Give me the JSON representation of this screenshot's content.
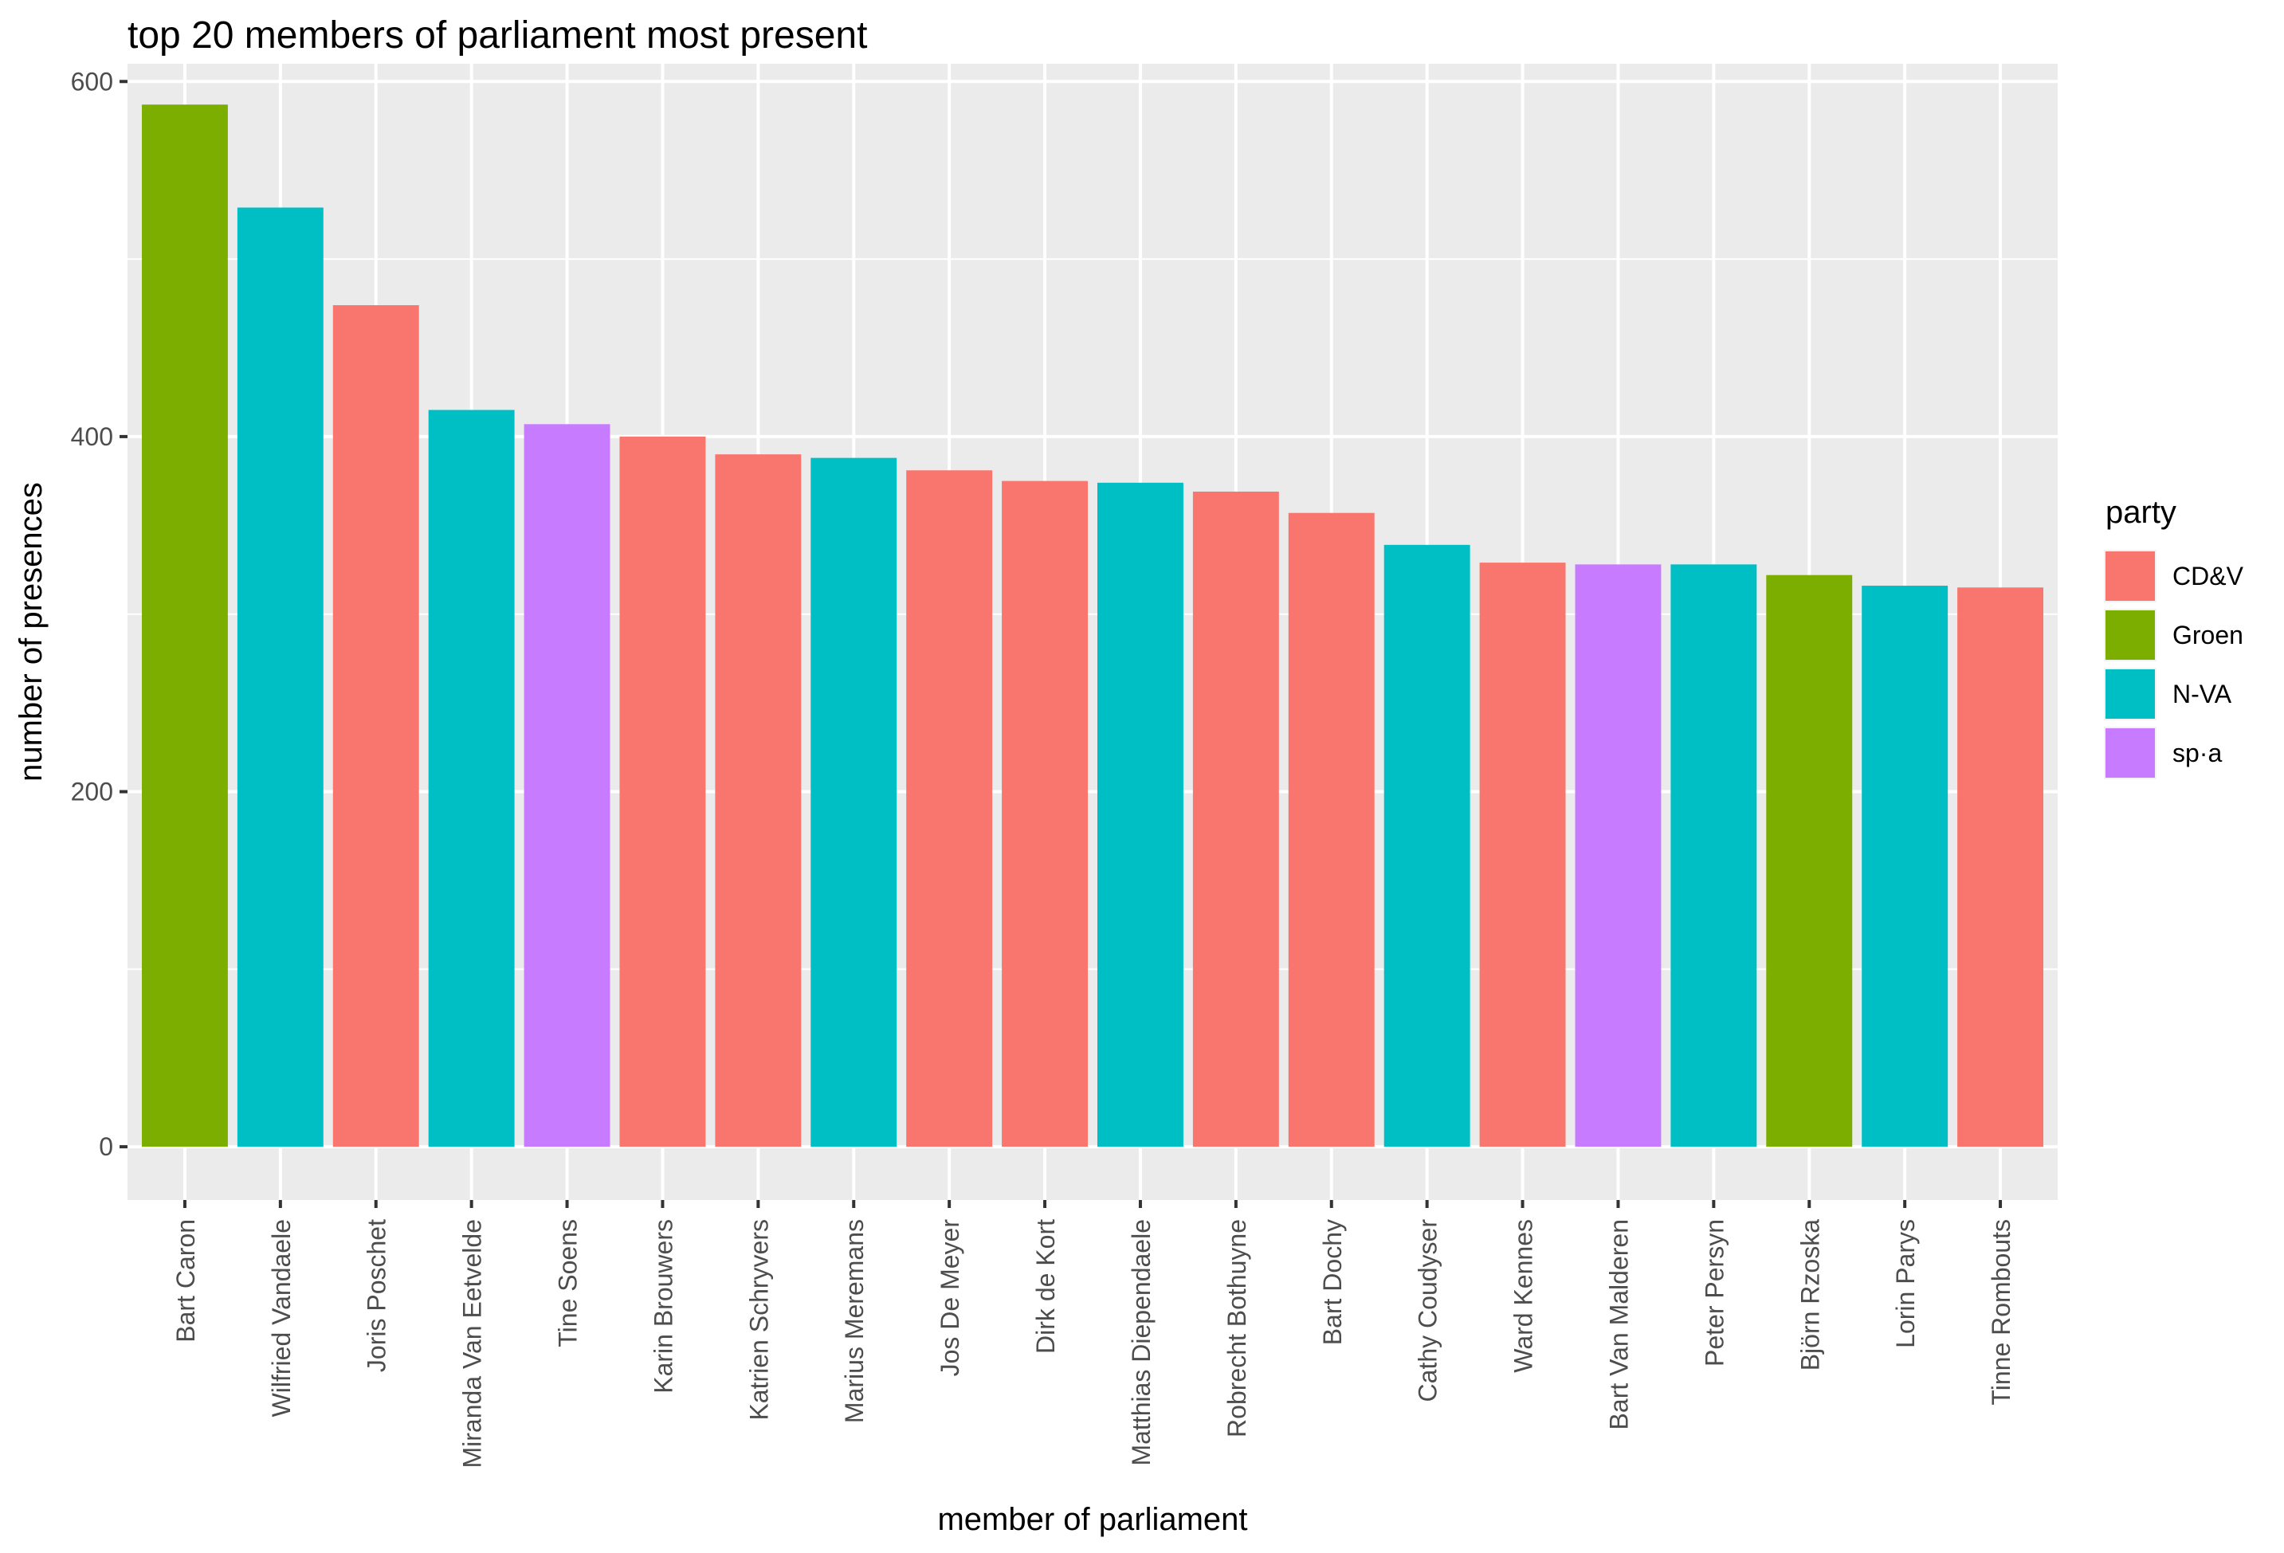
{
  "chart_data": {
    "type": "bar",
    "title": "top 20 members of parliament most present",
    "xlabel": "member of parliament",
    "ylabel": "number of presences",
    "ylim": [
      -30,
      610
    ],
    "yticks": [
      0,
      200,
      400,
      600
    ],
    "grid": true,
    "legend": {
      "title": "party",
      "position": "right",
      "entries": [
        {
          "name": "CD&V",
          "color": "#F8766D"
        },
        {
          "name": "Groen",
          "color": "#7CAE00"
        },
        {
          "name": "N-VA",
          "color": "#00BFC4"
        },
        {
          "name": "sp·a",
          "color": "#C77CFF"
        }
      ]
    },
    "categories": [
      "Bart Caron",
      "Wilfried Vandaele",
      "Joris Poschet",
      "Miranda Van Eetvelde",
      "Tine Soens",
      "Karin Brouwers",
      "Katrien Schryvers",
      "Marius Meremans",
      "Jos De Meyer",
      "Dirk de Kort",
      "Matthias Diependaele",
      "Robrecht Bothuyne",
      "Bart Dochy",
      "Cathy Coudyser",
      "Ward Kennes",
      "Bart Van Malderen",
      "Peter Persyn",
      "Björn Rzoska",
      "Lorin Parys",
      "Tinne Rombouts"
    ],
    "values": [
      587,
      529,
      474,
      415,
      407,
      400,
      390,
      388,
      381,
      375,
      374,
      369,
      357,
      339,
      329,
      328,
      328,
      322,
      316,
      315
    ],
    "party": [
      "Groen",
      "N-VA",
      "CD&V",
      "N-VA",
      "sp·a",
      "CD&V",
      "CD&V",
      "N-VA",
      "CD&V",
      "CD&V",
      "N-VA",
      "CD&V",
      "CD&V",
      "N-VA",
      "CD&V",
      "sp·a",
      "N-VA",
      "Groen",
      "N-VA",
      "CD&V"
    ]
  }
}
